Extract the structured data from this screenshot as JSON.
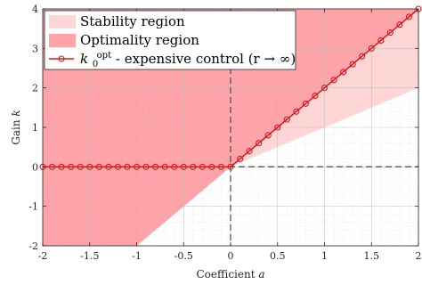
{
  "chart_data": {
    "type": "line",
    "xlabel": "Coefficient a",
    "ylabel": "Gain k",
    "xlim": [
      -2,
      2
    ],
    "ylim": [
      -2,
      4
    ],
    "xticks": [
      -2,
      -1.5,
      -1,
      -0.5,
      0,
      0.5,
      1,
      1.5,
      2
    ],
    "yticks": [
      -2,
      -1,
      0,
      1,
      2,
      3,
      4
    ],
    "xtick_labels": [
      "-2",
      "-1.5",
      "-1",
      "-0.5",
      "0",
      "0.5",
      "1",
      "1.5",
      "2"
    ],
    "ytick_labels": [
      "-2",
      "-1",
      "0",
      "1",
      "2",
      "3",
      "4"
    ],
    "grid": true,
    "minor_grid": true,
    "legend_position": "top-left",
    "reference_lines": {
      "x": 0,
      "y": 0,
      "style": "dashed"
    },
    "regions": [
      {
        "name": "Stability region",
        "color": "#ffd6d6",
        "boundary": "k > a"
      },
      {
        "name": "Optimality region",
        "color": "#ffa3a8",
        "boundary": "k > 2a"
      }
    ],
    "series": [
      {
        "name": "k_0^opt - expensive control (r → ∞)",
        "legend_main": "k",
        "legend_sup": "opt",
        "legend_sub": "0",
        "legend_rest": " - expensive control (r → ∞)",
        "color": "#d7191c",
        "marker": "circle-open",
        "x": [
          -2.0,
          -1.9,
          -1.8,
          -1.7,
          -1.6,
          -1.5,
          -1.4,
          -1.3,
          -1.2,
          -1.1,
          -1.0,
          -0.9,
          -0.8,
          -0.7,
          -0.6,
          -0.5,
          -0.4,
          -0.3,
          -0.2,
          -0.1,
          0.0,
          0.1,
          0.2,
          0.3,
          0.4,
          0.5,
          0.6,
          0.7,
          0.8,
          0.9,
          1.0,
          1.1,
          1.2,
          1.3,
          1.4,
          1.5,
          1.6,
          1.7,
          1.8,
          1.9,
          2.0
        ],
        "y": [
          0,
          0,
          0,
          0,
          0,
          0,
          0,
          0,
          0,
          0,
          0,
          0,
          0,
          0,
          0,
          0,
          0,
          0,
          0,
          0,
          0,
          0.2,
          0.4,
          0.6,
          0.8,
          1.0,
          1.2,
          1.4,
          1.6,
          1.8,
          2.0,
          2.2,
          2.4,
          2.6,
          2.8,
          3.0,
          3.2,
          3.4,
          3.6,
          3.8,
          4.0
        ]
      }
    ]
  }
}
